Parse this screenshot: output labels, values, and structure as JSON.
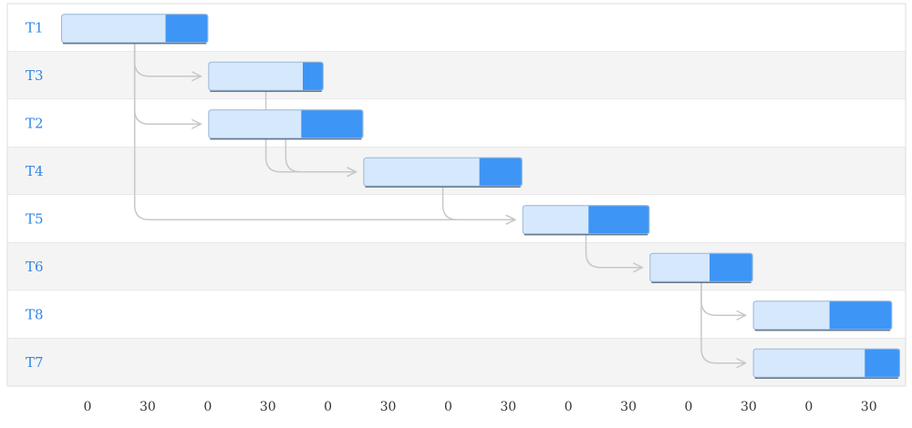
{
  "chart_data": {
    "type": "gantt",
    "title": "",
    "xlabel": "",
    "ylabel": "",
    "xlim": [
      -30,
      200
    ],
    "x_ticks": [
      0,
      30,
      60,
      90,
      120,
      150,
      180,
      210
    ],
    "x_tick_labels": [
      "0",
      "30",
      "0",
      "30",
      "0",
      "30",
      "0",
      "30",
      "0",
      "30",
      "0",
      "30",
      "0",
      "30"
    ],
    "x_tick_values": [
      0,
      30,
      60,
      90,
      120,
      150,
      180,
      210,
      240,
      270,
      300,
      330,
      360,
      390
    ],
    "tasks": [
      {
        "name": "T1",
        "start": 0,
        "end": 37,
        "progress": 0.71
      },
      {
        "name": "T3",
        "start": 37,
        "end": 66,
        "progress": 0.82
      },
      {
        "name": "T2",
        "start": 37,
        "end": 76,
        "progress": 0.6
      },
      {
        "name": "T4",
        "start": 76,
        "end": 116,
        "progress": 0.73
      },
      {
        "name": "T5",
        "start": 116,
        "end": 148,
        "progress": 0.52
      },
      {
        "name": "T6",
        "start": 148,
        "end": 174,
        "progress": 0.58
      },
      {
        "name": "T8",
        "start": 174,
        "end": 209,
        "progress": 0.55
      },
      {
        "name": "T7",
        "start": 174,
        "end": 211,
        "progress": 0.76
      }
    ],
    "dependencies": [
      {
        "from": "T1",
        "to": "T3"
      },
      {
        "from": "T1",
        "to": "T2"
      },
      {
        "from": "T1",
        "to": "T5"
      },
      {
        "from": "T3",
        "to": "T4"
      },
      {
        "from": "T2",
        "to": "T4"
      },
      {
        "from": "T4",
        "to": "T5"
      },
      {
        "from": "T5",
        "to": "T6"
      },
      {
        "from": "T6",
        "to": "T8"
      },
      {
        "from": "T6",
        "to": "T7"
      }
    ],
    "colors": {
      "bar_fill": "#d6e8fc",
      "progress_fill": "#3d95f5",
      "label": "#2f86e6",
      "row_alt": "#f4f4f4",
      "grid": "#dddddd",
      "arrow": "#c8c8c8",
      "tick": "#333333"
    }
  }
}
